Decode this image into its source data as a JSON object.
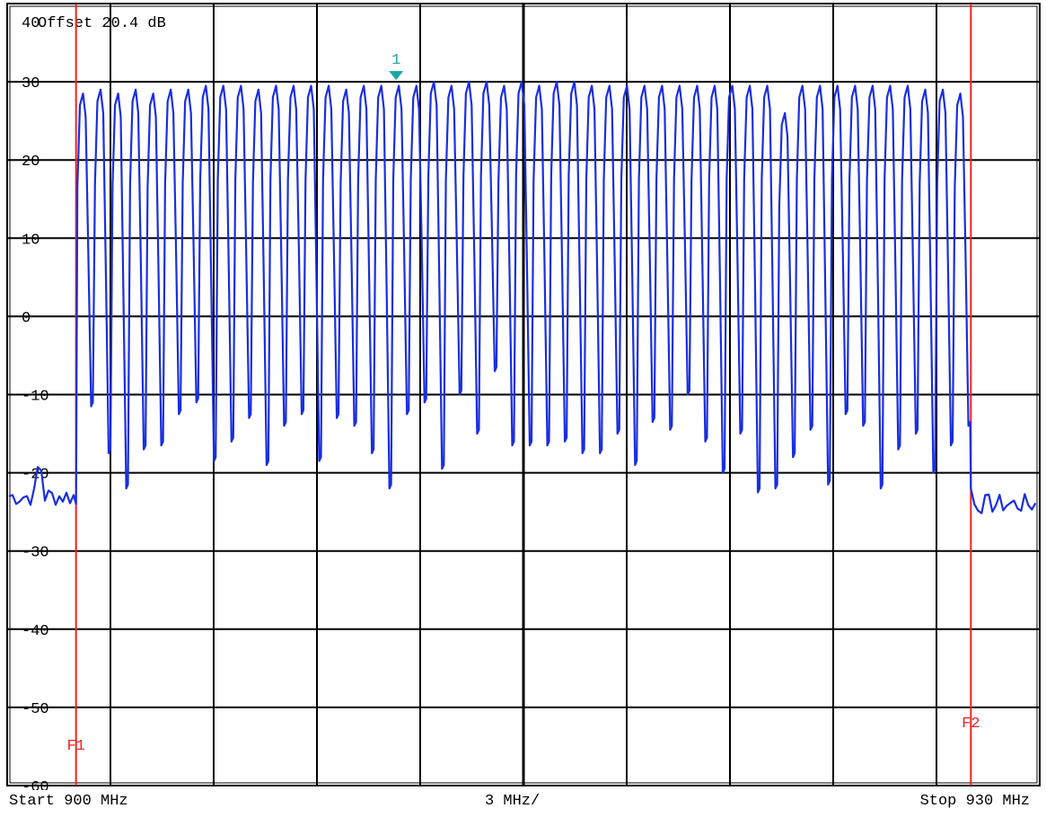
{
  "chart_data": {
    "type": "line",
    "title": "",
    "xlabel": "",
    "ylabel": "",
    "xlim": [
      900,
      930
    ],
    "ylim": [
      -62,
      40
    ],
    "y_ticks": [
      40,
      30,
      20,
      10,
      0,
      -10,
      -20,
      -30,
      -40,
      -50,
      -60
    ],
    "y_tick_labels": [
      "40",
      "30",
      "20",
      "10",
      "0",
      "-10",
      "-20",
      "-30",
      "-40",
      "-50",
      "-60"
    ],
    "offset_label": "Offset  20.4 dB",
    "grid": true,
    "series": [
      {
        "color": "#1a2ee0",
        "noise_floor_dB": -24,
        "band_start_MHz": 902,
        "band_stop_MHz": 928,
        "channel_count": 51,
        "peaks_dB": [
          28.5,
          29,
          28.5,
          29,
          28.5,
          29,
          29,
          29.5,
          29.5,
          29.5,
          29,
          29.5,
          29.5,
          29.5,
          29.5,
          29,
          29.5,
          29.5,
          29.5,
          29.5,
          30,
          29.5,
          30,
          30,
          29.5,
          30,
          29.5,
          30,
          30,
          29.5,
          29.5,
          29.5,
          29.5,
          29.5,
          29.5,
          29.5,
          29.5,
          29.5,
          29.5,
          29.5,
          26,
          29.5,
          29.5,
          29.5,
          29.5,
          29.5,
          29.5,
          29.5,
          29,
          29,
          28.5
        ],
        "troughs_dB": [
          -11.5,
          -17.5,
          -22,
          -17,
          -16.5,
          -12.5,
          -11,
          -18.5,
          -16,
          -13,
          -19,
          -14,
          -12.5,
          -18.5,
          -13,
          -14,
          -17.5,
          -22,
          -12.5,
          -11,
          -19.5,
          -10,
          -15,
          -7,
          -16.5,
          -16.5,
          -16.5,
          -16,
          -17.5,
          -17.5,
          -15,
          -19,
          -13.5,
          -14.5,
          -10,
          -16,
          -20,
          -15,
          -22.5,
          -22,
          -18,
          -14.5,
          -21.5,
          -12.5,
          -14,
          -22,
          -17,
          -15,
          -20,
          -16.5,
          -14
        ]
      }
    ],
    "markers": [
      {
        "label": "1",
        "x_MHz": 911.3,
        "y_dB": 30,
        "color": "#1aa6a0"
      }
    ],
    "limit_lines": [
      {
        "label": "F1",
        "x_MHz": 902,
        "color": "#ee2222"
      },
      {
        "label": "F2",
        "x_MHz": 928,
        "color": "#ee2222"
      }
    ]
  },
  "footer": {
    "start": "Start 900 MHz",
    "div": "3 MHz/",
    "stop": "Stop 930 MHz"
  }
}
